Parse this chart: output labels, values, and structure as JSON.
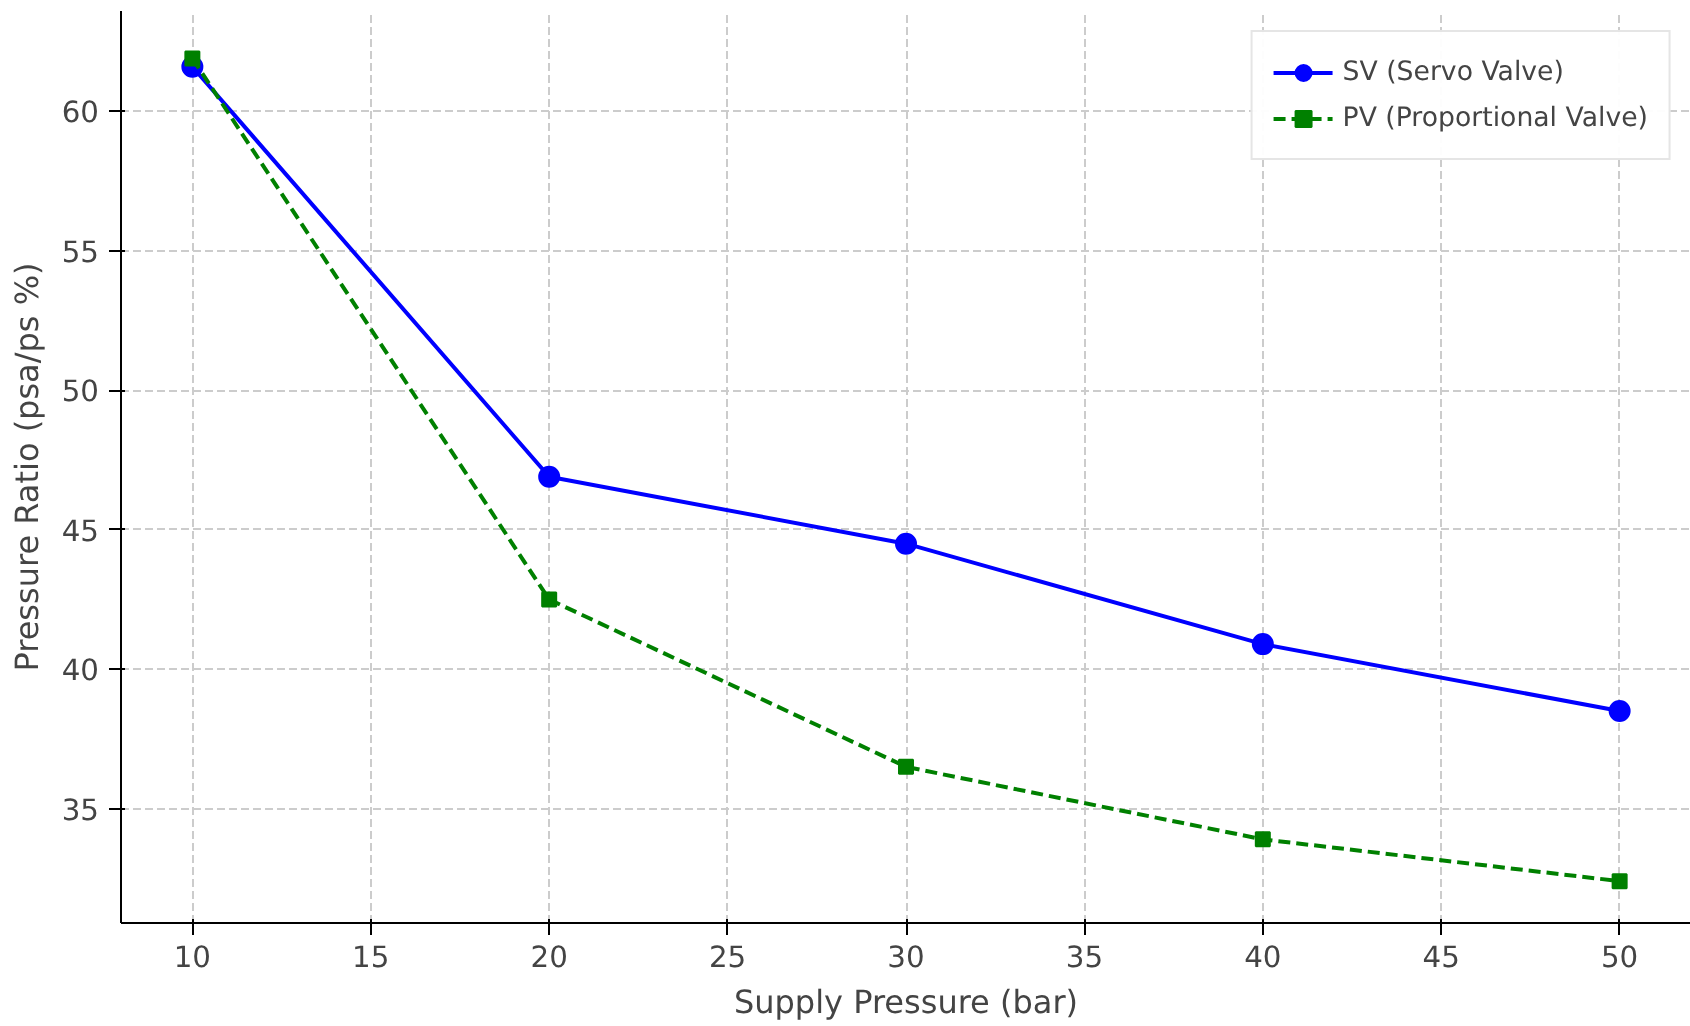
{
  "chart_data": {
    "type": "line",
    "xlabel": "Supply Pressure (bar)",
    "ylabel": "Pressure Ratio (psa/ps %)",
    "x": [
      10,
      20,
      30,
      40,
      50
    ],
    "series": [
      {
        "name": "SV (Servo Valve)",
        "color": "#0000ff",
        "values": [
          61.6,
          46.9,
          44.5,
          40.9,
          38.5
        ],
        "marker": "circle",
        "line_style": "solid"
      },
      {
        "name": "PV (Proportional Valve)",
        "color": "#008000",
        "values": [
          61.9,
          42.5,
          36.5,
          33.9,
          32.4
        ],
        "marker": "square",
        "line_style": "dashed"
      }
    ],
    "xlim": [
      8,
      52
    ],
    "ylim": [
      30.9,
      63.6
    ],
    "xticks": [
      10,
      15,
      20,
      25,
      30,
      35,
      40,
      45,
      50
    ],
    "yticks": [
      35,
      40,
      45,
      50,
      55,
      60
    ],
    "grid": true,
    "legend": "top right"
  }
}
